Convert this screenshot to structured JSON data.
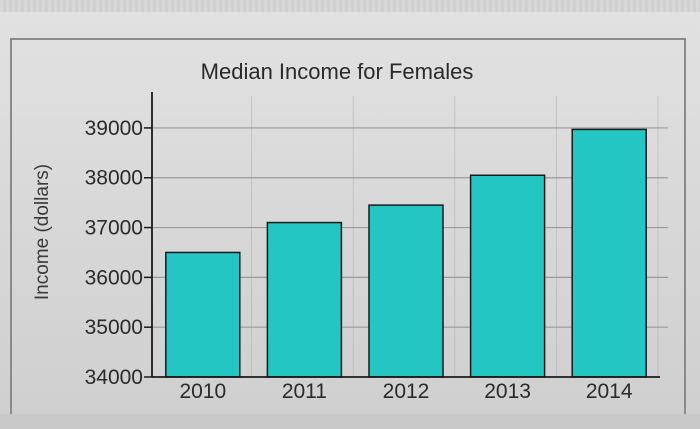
{
  "colors": {
    "bar_fill": "#24c6c3",
    "bar_stroke": "#1a1a1a",
    "grid": "#9a9a9a",
    "axis": "#1a1a1a",
    "background": "#dadada"
  },
  "chart_data": {
    "type": "bar",
    "title": "Median Income for Females",
    "xlabel": "",
    "ylabel": "Income (dollars)",
    "categories": [
      "2010",
      "2011",
      "2012",
      "2013",
      "2014"
    ],
    "values": [
      36500,
      37100,
      37450,
      38050,
      38970
    ],
    "ylim": [
      34000,
      39400
    ],
    "yticks": [
      34000,
      35000,
      36000,
      37000,
      38000,
      39000
    ],
    "ytick_labels": [
      "34000",
      "35000",
      "36000",
      "37000",
      "38000",
      "39000"
    ],
    "grid": true,
    "legend": "none"
  }
}
